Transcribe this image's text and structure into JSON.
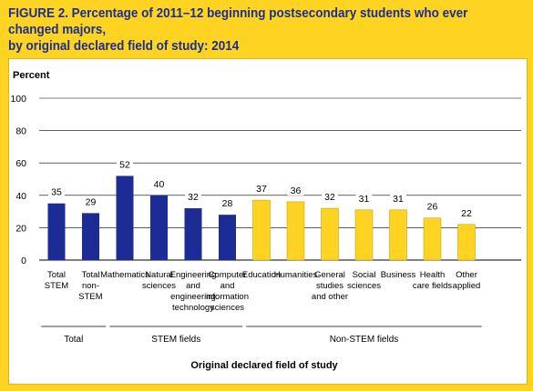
{
  "figure": {
    "title_line1": "FIGURE 2. Percentage of 2011–12 beginning postsecondary students who ever changed majors,",
    "title_line2": "by original declared field of study: 2014"
  },
  "chart_data": {
    "type": "bar",
    "ylabel": "Percent",
    "xlabel": "Original declared field of study",
    "ylim": [
      0,
      100
    ],
    "yticks": [
      0,
      20,
      40,
      60,
      80,
      100
    ],
    "grid": true,
    "categories": [
      [
        "Total",
        "STEM"
      ],
      [
        "Total",
        "non-",
        "STEM"
      ],
      [
        "Mathematics"
      ],
      [
        "Natural",
        "sciences"
      ],
      [
        "Engineering",
        "and",
        "engineering",
        "technology"
      ],
      [
        "Computer",
        "and",
        "information",
        "sciences"
      ],
      [
        "Education"
      ],
      [
        "Humanities"
      ],
      [
        "General",
        "studies",
        "and other"
      ],
      [
        "Social",
        "sciences"
      ],
      [
        "Business"
      ],
      [
        "Health",
        "care fields"
      ],
      [
        "Other",
        "applied"
      ]
    ],
    "values": [
      35,
      29,
      52,
      40,
      32,
      28,
      37,
      36,
      32,
      31,
      31,
      26,
      22
    ],
    "colors": [
      "#1c2c94",
      "#1c2c94",
      "#1c2c94",
      "#1c2c94",
      "#1c2c94",
      "#1c2c94",
      "#ffd321",
      "#ffd321",
      "#ffd321",
      "#ffd321",
      "#ffd321",
      "#ffd321",
      "#ffd321"
    ],
    "groups": [
      {
        "label": "Total",
        "from": 0,
        "to": 1
      },
      {
        "label": "STEM fields",
        "from": 2,
        "to": 5
      },
      {
        "label": "Non-STEM fields",
        "from": 6,
        "to": 12
      }
    ]
  }
}
